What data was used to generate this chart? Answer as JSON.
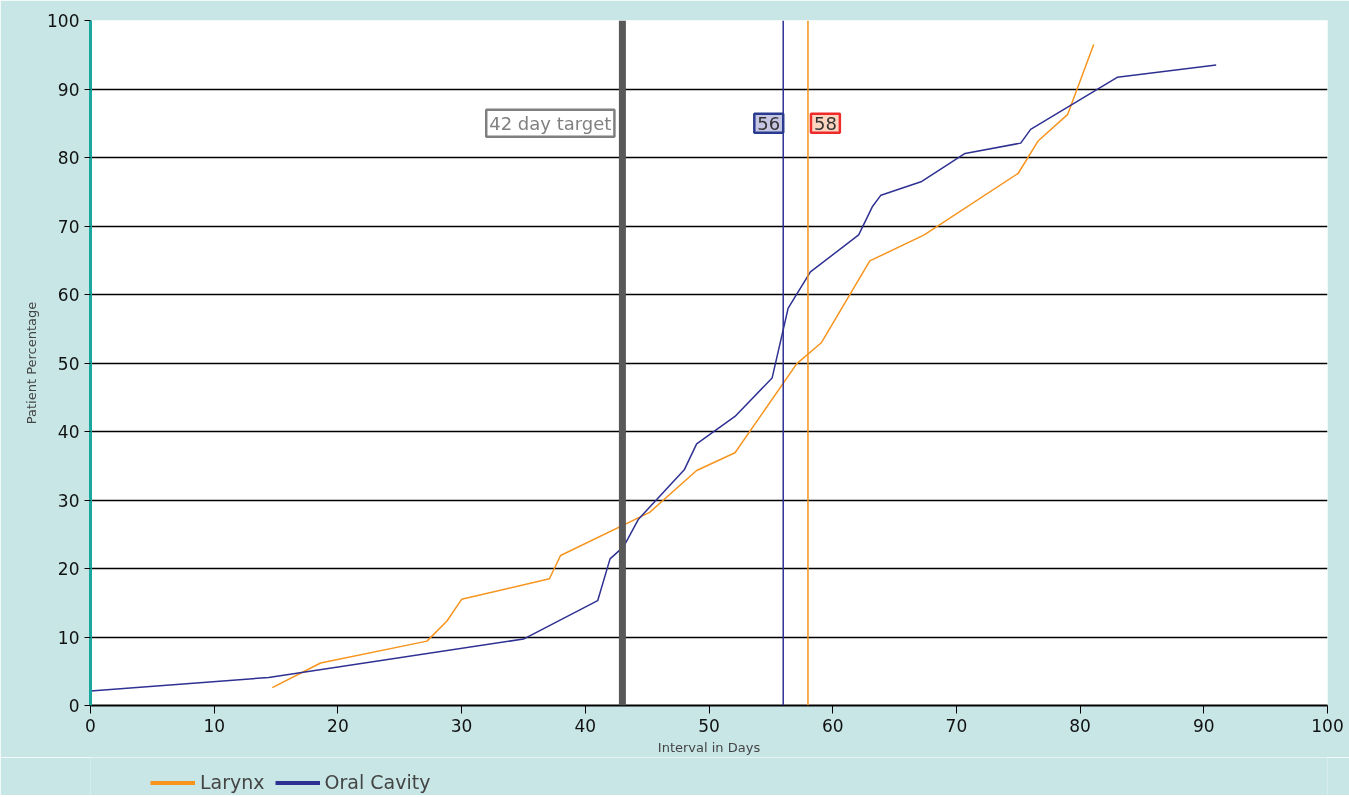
{
  "chart_data": {
    "type": "line",
    "xlabel": "Interval in Days",
    "ylabel": "Patient Percentage",
    "xlim": [
      0,
      100
    ],
    "ylim": [
      0,
      100
    ],
    "xticks": [
      0,
      10,
      20,
      30,
      40,
      50,
      60,
      70,
      80,
      90,
      100
    ],
    "yticks": [
      0,
      10,
      20,
      30,
      40,
      50,
      60,
      70,
      80,
      90,
      100
    ],
    "grid": "y",
    "legend": "bottom left",
    "marker": "none",
    "line_style": "solid",
    "series": [
      {
        "name": "Larynx",
        "color": "#f7941d",
        "x": [
          14.7,
          18.6,
          27.2,
          28.8,
          30.0,
          37.1,
          38.0,
          45.2,
          49.0,
          52.1,
          57.1,
          59.1,
          63.0,
          67.4,
          75.0,
          76.6,
          79.0,
          81.1
        ],
        "values": [
          2.6,
          6.2,
          9.4,
          12.3,
          15.5,
          18.5,
          21.9,
          28.2,
          34.3,
          36.9,
          49.9,
          53.0,
          64.9,
          68.7,
          77.7,
          82.4,
          86.3,
          96.5
        ]
      },
      {
        "name": "Oral Cavity",
        "color": "#2e3192",
        "x": [
          0,
          14.4,
          35.0,
          41.0,
          42.0,
          43.1,
          44.3,
          48.0,
          49.0,
          52.1,
          55.1,
          56.4,
          58.2,
          62.1,
          63.2,
          63.9,
          67.2,
          70.7,
          75.2,
          76.0,
          83.0,
          91.0
        ],
        "values": [
          2.1,
          4.1,
          9.7,
          15.3,
          21.4,
          23.2,
          27.2,
          34.4,
          38.2,
          42.2,
          47.8,
          58.0,
          63.3,
          68.7,
          72.8,
          74.5,
          76.5,
          80.6,
          82.1,
          84.1,
          91.7,
          93.5
        ]
      }
    ],
    "ref_lines": [
      {
        "axis": "x",
        "value": 43,
        "label": "42 day target",
        "color": "#595959"
      },
      {
        "axis": "x",
        "value": 56,
        "label": "56",
        "color": "#2e3192"
      },
      {
        "axis": "x",
        "value": 58,
        "label": "58",
        "color": "#f7941d"
      }
    ]
  }
}
